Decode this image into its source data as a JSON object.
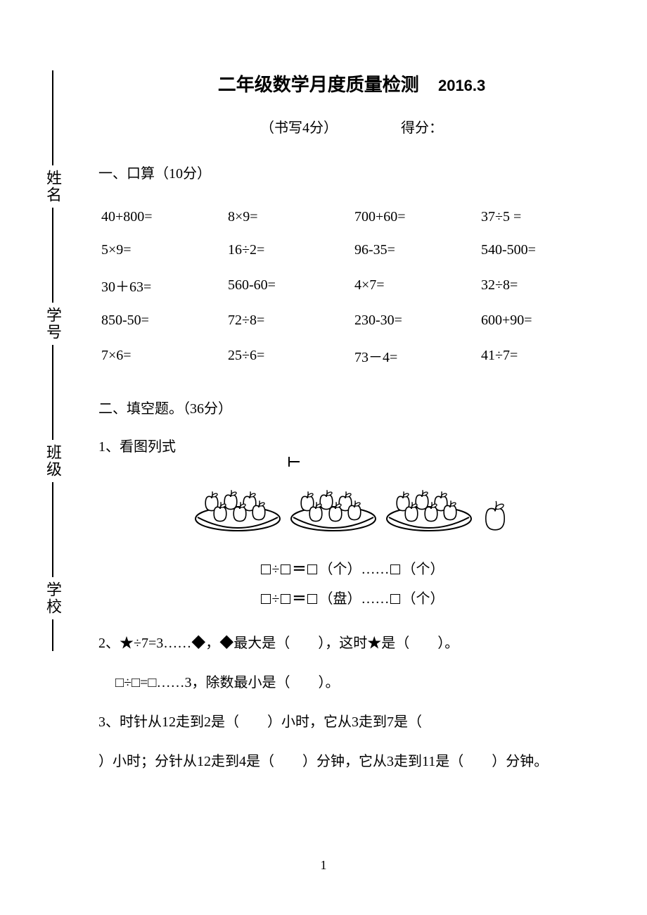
{
  "sidebar": {
    "labels": [
      "姓名",
      "学号",
      "班级",
      "学校"
    ]
  },
  "title": {
    "main": "二年级数学月度质量检测",
    "date": "2016.3"
  },
  "subtitle": {
    "left": "（书写4分）",
    "right": "得分："
  },
  "section1": {
    "heading": "一、口算（10分）",
    "rows": [
      [
        "40+800=",
        "8×9=",
        "700+60=",
        "37÷5 ="
      ],
      [
        "5×9=",
        "16÷2=",
        "96-35=",
        "540-500="
      ],
      [
        "30＋63=",
        "560-60=",
        "4×7=",
        "32÷8="
      ],
      [
        "850-50=",
        "72÷8=",
        "230-30=",
        "600+90="
      ],
      [
        "7×6=",
        "25÷6=",
        "73－4=",
        "41÷7="
      ]
    ]
  },
  "section2": {
    "heading": "二、填空题。（36分）",
    "q1_label": "1、看图列式",
    "formula1_suffix_a": "（个）……",
    "formula1_suffix_b": "（个）",
    "formula2_suffix_a": "（盘）……",
    "formula2_suffix_b": "（个）",
    "q2_line1": "2、★÷7=3……◆，◆最大是（　　），这时★是（　　）。",
    "q2_line2": "□÷□=□……3，除数最小是（　　）。",
    "q3_line1": "3、时针从12走到2是（　　）小时，它从3走到7是（　",
    "q3_line2": "）小时；分针从12走到4是（　　）分钟，它从3走到11是（　　）分钟。"
  },
  "apples": {
    "plate_count": 3,
    "extra_apple": 1,
    "plate_color": "#000000",
    "bg": "#ffffff"
  },
  "page_number": "1",
  "colors": {
    "text": "#000000",
    "background": "#ffffff"
  },
  "fonts": {
    "body_pt": 20,
    "title_pt": 26
  }
}
